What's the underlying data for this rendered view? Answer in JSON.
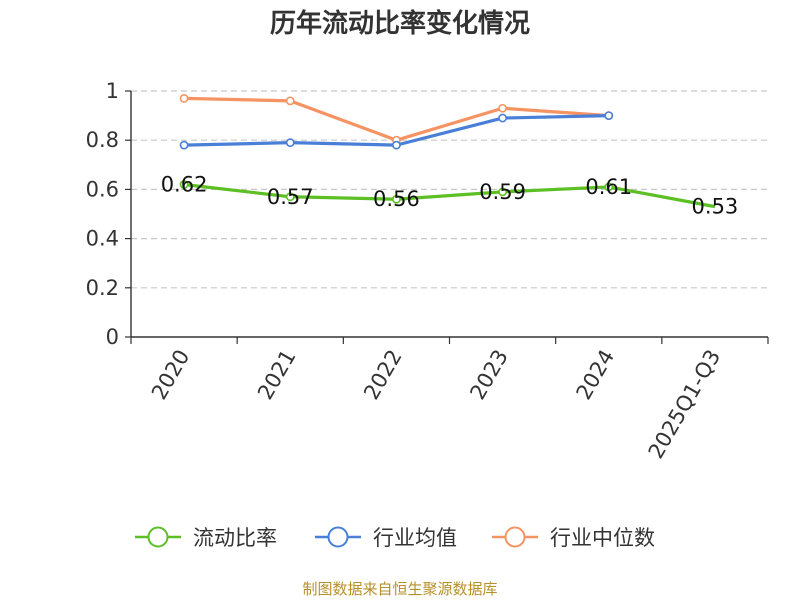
{
  "chart_data": {
    "type": "line",
    "title": "历年流动比率变化情况",
    "categories": [
      "2020",
      "2021",
      "2022",
      "2023",
      "2024",
      "2025Q1-Q3"
    ],
    "ylim": [
      0,
      1
    ],
    "yticks": [
      0,
      0.2,
      0.4,
      0.6,
      0.8,
      1
    ],
    "ytick_labels": [
      "0",
      "0.2",
      "0.4",
      "0.6",
      "0.8",
      "1"
    ],
    "grid": true,
    "legend_position": "bottom",
    "series": [
      {
        "name": "流动比率",
        "color": "#5cbf23",
        "values": [
          0.62,
          0.57,
          0.56,
          0.59,
          0.61,
          0.53
        ],
        "labels": [
          "0.62",
          "0.57",
          "0.56",
          "0.59",
          "0.61",
          "0.53"
        ]
      },
      {
        "name": "行业均值",
        "color": "#4a7fd8",
        "values": [
          0.78,
          0.79,
          0.78,
          0.89,
          0.9,
          null
        ]
      },
      {
        "name": "行业中位数",
        "color": "#f59363",
        "values": [
          0.97,
          0.96,
          0.8,
          0.93,
          0.9,
          null
        ]
      }
    ]
  },
  "source": "制图数据来自恒生聚源数据库"
}
